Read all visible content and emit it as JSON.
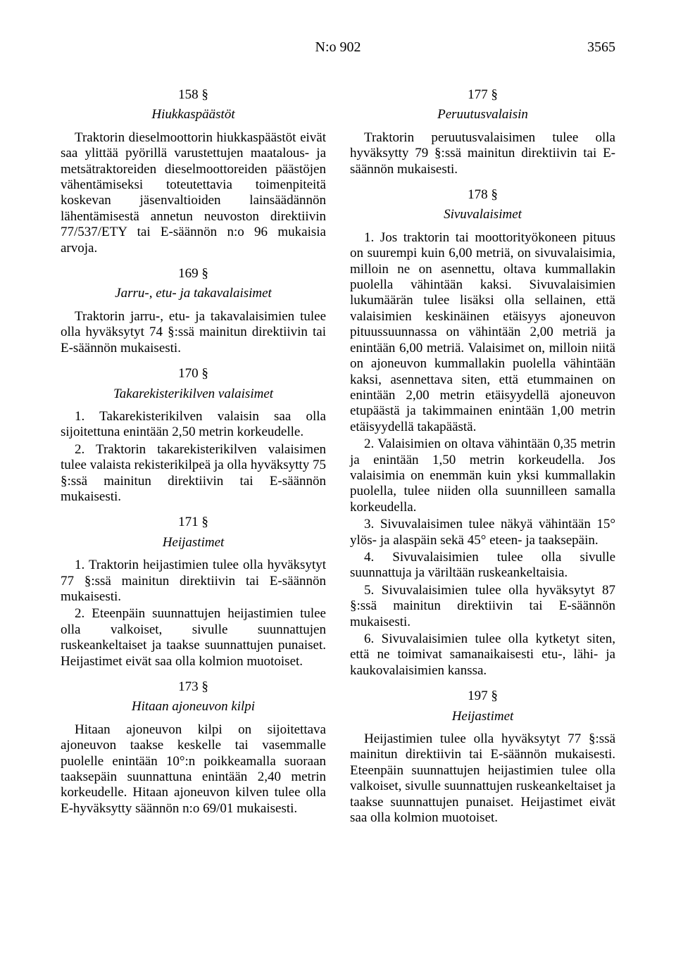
{
  "header": {
    "doc_number": "N:o 902",
    "page_number": "3565"
  },
  "left": {
    "s158": {
      "num": "158 §",
      "title": "Hiukkaspäästöt",
      "p1": "Traktorin dieselmoottorin hiukkaspäästöt eivät saa ylittää pyörillä varustettujen maatalous- ja metsätraktoreiden dieselmoottoreiden päästöjen vähentämiseksi toteutettavia toimenpiteitä koskevan jäsenvaltioiden lainsäädännön lähentämisestä annetun neuvoston direktiivin 77/537/ETY tai E-säännön n:o 96 mukaisia arvoja."
    },
    "s169": {
      "num": "169 §",
      "title": "Jarru-, etu- ja takavalaisimet",
      "p1": "Traktorin jarru-, etu- ja takavalaisimien tulee olla hyväksytyt 74 §:ssä mainitun direktiivin tai E-säännön mukaisesti."
    },
    "s170": {
      "num": "170 §",
      "title": "Takarekisterikilven valaisimet",
      "p1": "1. Takarekisterikilven valaisin saa olla sijoitettuna enintään 2,50 metrin korkeudelle.",
      "p2": "2. Traktorin takarekisterikilven valaisimen tulee valaista rekisterikilpeä ja olla hyväksytty 75 §:ssä mainitun direktiivin tai E-säännön mukaisesti."
    },
    "s171": {
      "num": "171 §",
      "title": "Heijastimet",
      "p1": "1. Traktorin heijastimien tulee olla hyväksytyt 77 §:ssä mainitun direktiivin tai E-säännön mukaisesti.",
      "p2": "2. Eteenpäin suunnattujen heijastimien tulee olla valkoiset, sivulle suunnattujen ruskeankeltaiset ja taakse suunnattujen punaiset. Heijastimet eivät saa olla kolmion muotoiset."
    },
    "s173": {
      "num": "173 §",
      "title": "Hitaan ajoneuvon kilpi",
      "p1": "Hitaan ajoneuvon kilpi on sijoitettava ajoneuvon taakse keskelle tai vasemmalle puolelle enintään 10°:n poikkeamalla suoraan taaksepäin suunnattuna enintään 2,40 metrin korkeudelle. Hitaan ajoneuvon kilven tulee olla E-hyväksytty säännön n:o 69/01 mukaisesti."
    }
  },
  "right": {
    "s177": {
      "num": "177 §",
      "title": "Peruutusvalaisin",
      "p1": "Traktorin peruutusvalaisimen tulee olla hyväksytty 79 §:ssä mainitun direktiivin tai E-säännön mukaisesti."
    },
    "s178": {
      "num": "178 §",
      "title": "Sivuvalaisimet",
      "p1": "1. Jos traktorin tai moottorityökoneen pituus on suurempi kuin 6,00 metriä, on sivuvalaisimia, milloin ne on asennettu, oltava kummallakin puolella vähintään kaksi. Sivuvalaisimien lukumäärän tulee lisäksi olla sellainen, että valaisimien keskinäinen etäisyys ajoneuvon pituussuunnassa on vähintään 2,00 metriä ja enintään 6,00 metriä. Valaisimet on, milloin niitä on ajoneuvon kummallakin puolella vähintään kaksi, asennettava siten, että etummainen on enintään 2,00 metrin etäisyydellä ajoneuvon etupäästä ja takimmainen enintään 1,00 metrin etäisyydellä takapäästä.",
      "p2": "2. Valaisimien on oltava vähintään 0,35 metrin ja enintään 1,50 metrin korkeudella. Jos valaisimia on enemmän kuin yksi kummallakin puolella, tulee niiden olla suunnilleen samalla korkeudella.",
      "p3": "3. Sivuvalaisimen tulee näkyä vähintään 15° ylös- ja alaspäin sekä 45° eteen- ja taaksepäin.",
      "p4": "4. Sivuvalaisimien tulee olla sivulle suunnattuja ja väriltään ruskeankeltaisia.",
      "p5": "5. Sivuvalaisimien tulee olla hyväksytyt 87 §:ssä mainitun direktiivin tai E-säännön mukaisesti.",
      "p6": "6. Sivuvalaisimien tulee olla kytketyt siten, että ne toimivat samanaikaisesti etu-, lähi- ja kaukovalaisimien kanssa."
    },
    "s197": {
      "num": "197 §",
      "title": "Heijastimet",
      "p1": "Heijastimien tulee olla hyväksytyt 77 §:ssä mainitun direktiivin tai E-säännön mukaisesti. Eteenpäin suunnattujen heijastimien tulee olla valkoiset, sivulle suunnattujen ruskeankeltaiset ja taakse suunnattujen punaiset. Heijastimet eivät saa olla kolmion muotoiset."
    }
  }
}
